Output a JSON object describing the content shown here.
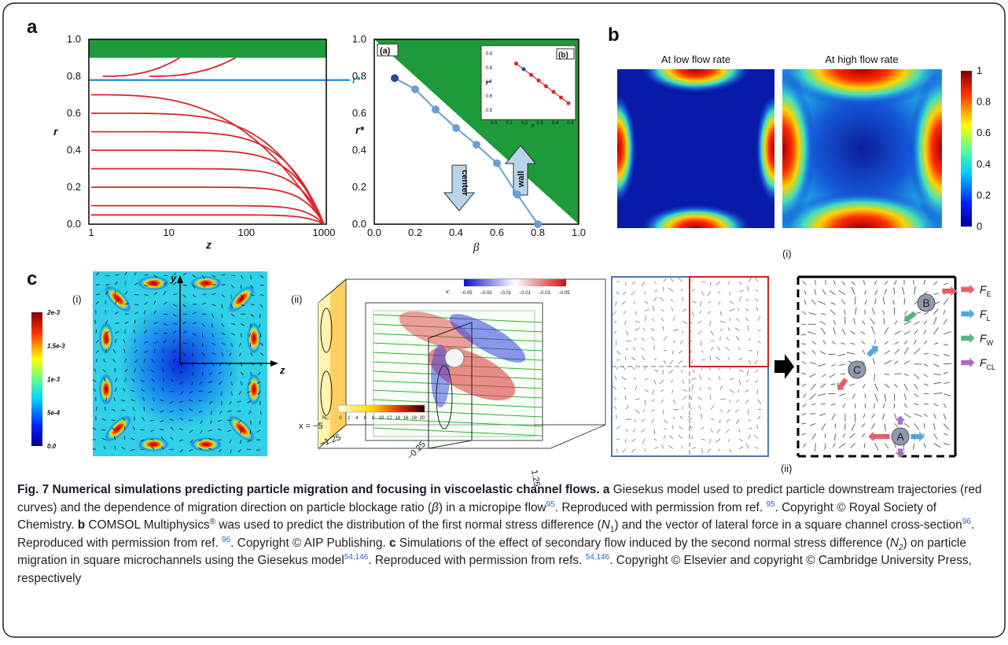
{
  "panel_labels": [
    "a",
    "b",
    "c"
  ],
  "panel_a": {
    "left_plot": {
      "x_label": "z",
      "y_label": "r",
      "x_ticks": [
        "1",
        "10",
        "100",
        "1000"
      ],
      "y_ticks": [
        "0.0",
        "0.2",
        "0.4",
        "0.6",
        "0.8",
        "1.0"
      ],
      "annotation": "r*"
    },
    "right_plot": {
      "x_label": "β",
      "y_label": "r*",
      "x_ticks": [
        "0.0",
        "0.2",
        "0.4",
        "0.6",
        "0.8",
        "1.0"
      ],
      "y_ticks": [
        "0.0",
        "0.2",
        "0.4",
        "0.6",
        "0.8",
        "1.0"
      ],
      "tags": [
        "(a)",
        "(b)"
      ],
      "arrows": [
        "center",
        "wall"
      ],
      "inset": {
        "x_label": "n",
        "y_label": "r*",
        "x_ticks": [
          "0.0",
          "0.1",
          "0.2",
          "0.3",
          "0.4",
          "0.5"
        ],
        "y_ticks": [
          "0.9",
          "0.8",
          "0.7",
          "0.6",
          "0.5"
        ]
      }
    }
  },
  "panel_b": {
    "titles": [
      "At low flow rate",
      "At high flow rate"
    ],
    "colorbar_ticks": [
      "1",
      "0.8",
      "0.6",
      "0.4",
      "0.2",
      "0"
    ],
    "sub_labels": [
      "(i)",
      "(ii)"
    ],
    "particles": [
      "A",
      "B",
      "C"
    ],
    "forces": [
      {
        "symbol": "F",
        "sub": "E"
      },
      {
        "symbol": "F",
        "sub": "L"
      },
      {
        "symbol": "F",
        "sub": "W"
      },
      {
        "symbol": "F",
        "sub": "CL"
      }
    ]
  },
  "panel_c": {
    "sub_labels": [
      "(i)",
      "(ii)"
    ],
    "axes": [
      "y",
      "z"
    ],
    "colorbar_ticks": [
      "2e-3",
      "1.5e-3",
      "1e-3",
      "5e-4",
      "0.0"
    ],
    "v_label": "v:",
    "v_ticks": [
      "−0.05",
      "−0.03",
      "−0.01",
      "−0.01",
      "−0.03",
      "−0.05"
    ],
    "n2_label": "N₂:",
    "n2_ticks": [
      "0",
      "2",
      "4",
      "6",
      "8",
      "10",
      "12",
      "14",
      "16",
      "18",
      "20"
    ],
    "x_labels": [
      "x = −5",
      "−1.25",
      "−0.25",
      "1.25"
    ]
  },
  "caption": [
    "Fig. 7 Numerical simulations predicting particle migration and focusing in viscoelastic channel flows. a",
    " Giesekus model used to predict particle downstream trajectories (red curves) and the dependence of migration direction on particle blockage ratio (",
    "β",
    ") in a micropipe flow",
    "95",
    ". Reproduced with permission from ref. ",
    "95",
    ". Copyright © Royal Society of Chemistry. ",
    "b",
    " COMSOL Multiphysics",
    "®",
    " was used to predict the distribution of the first normal stress difference (",
    "N",
    "1",
    ") and the vector of lateral force in a square channel cross-section",
    "96",
    ". Reproduced with permission from ref. ",
    "96",
    ". Copyright © AIP Publishing. ",
    "c",
    " Simulations of the effect of secondary flow induced by the second normal stress difference (",
    "N",
    "2",
    ") on particle migration in square microchannels using the Giesekus model",
    "54,146",
    ". Reproduced with permission from refs. ",
    "54,146",
    ". Copyright © Elsevier and copyright © Cambridge University Press, respectively"
  ]
}
